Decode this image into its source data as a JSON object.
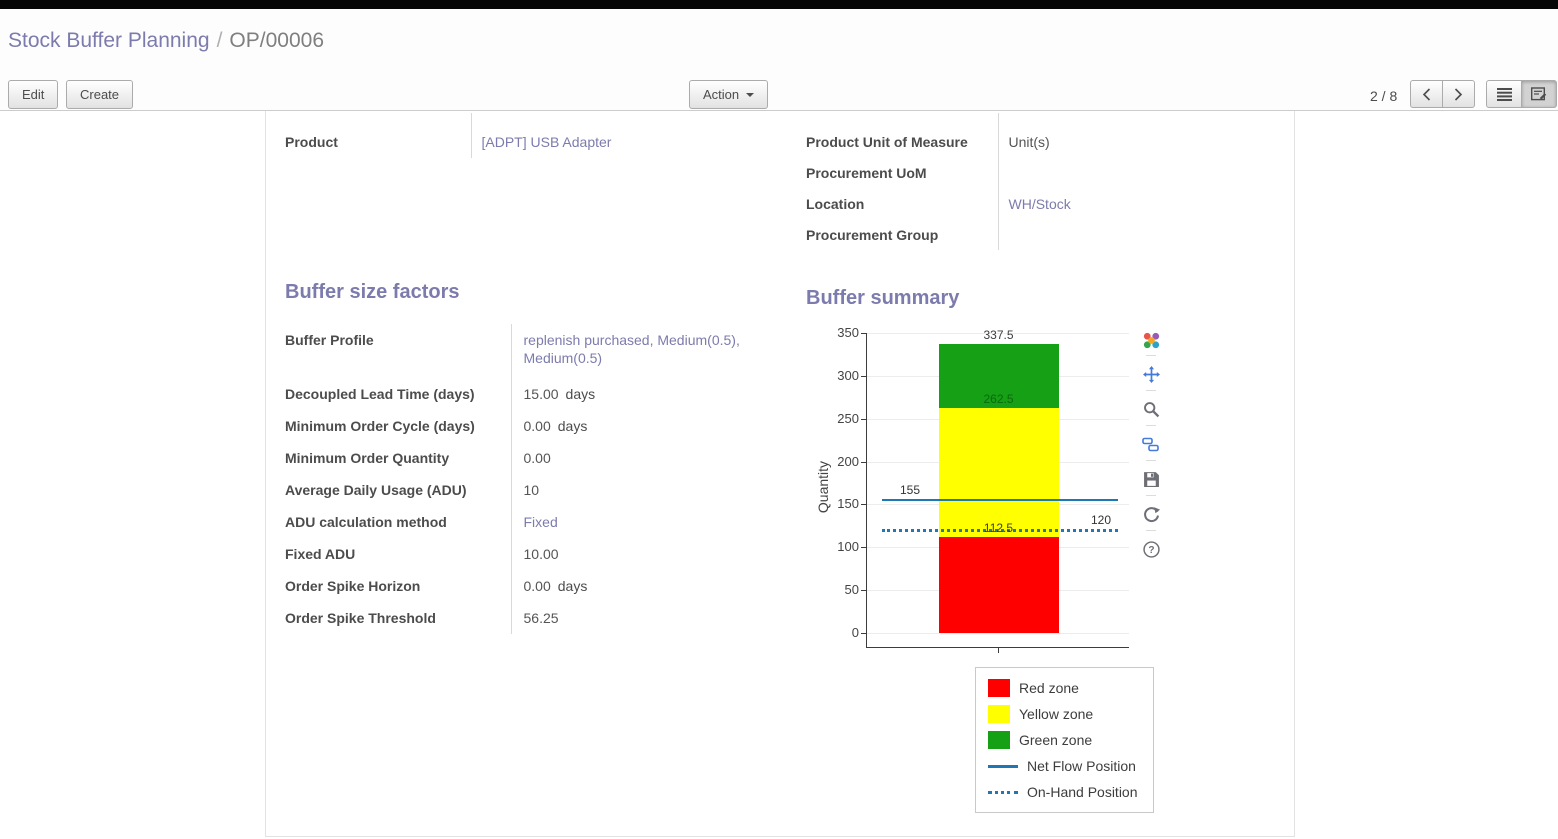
{
  "breadcrumb": {
    "parent": "Stock Buffer Planning",
    "separator": "/",
    "current": "OP/00006"
  },
  "toolbar": {
    "edit": "Edit",
    "create": "Create",
    "action": "Action",
    "pager": "2 / 8"
  },
  "form": {
    "sections": {
      "factors_title": "Buffer size factors",
      "summary_title": "Buffer summary"
    },
    "left_fields": [
      {
        "label": "Product",
        "value": "[ADPT] USB Adapter",
        "link": true
      }
    ],
    "right_fields": [
      {
        "label": "Product Unit of Measure",
        "value": "Unit(s)",
        "link": false
      },
      {
        "label": "Procurement UoM",
        "value": "",
        "link": false
      },
      {
        "label": "Location",
        "value": "WH/Stock",
        "link": true
      },
      {
        "label": "Procurement Group",
        "value": "",
        "link": false
      }
    ],
    "factor_fields": [
      {
        "label": "Buffer Profile",
        "value": "replenish purchased, Medium(0.5), Medium(0.5)",
        "link": true
      },
      {
        "label": "Decoupled Lead Time (days)",
        "value": "15.00",
        "suffix": "days"
      },
      {
        "label": "Minimum Order Cycle (days)",
        "value": "0.00",
        "suffix": "days"
      },
      {
        "label": "Minimum Order Quantity",
        "value": "0.00"
      },
      {
        "label": "Average Daily Usage (ADU)",
        "value": "10"
      },
      {
        "label": "ADU calculation method",
        "value": "Fixed",
        "link": true
      },
      {
        "label": "Fixed ADU",
        "value": "10.00"
      },
      {
        "label": "Order Spike Horizon",
        "value": "0.00",
        "suffix": "days"
      },
      {
        "label": "Order Spike Threshold",
        "value": "56.25"
      }
    ]
  },
  "chart_data": {
    "type": "bar",
    "title": "",
    "ylabel": "Quantity",
    "ylim": [
      0,
      350
    ],
    "yticks": [
      0,
      50,
      100,
      150,
      200,
      250,
      300,
      350
    ],
    "zones": [
      {
        "name": "Red zone",
        "from": 0,
        "to": 112.5,
        "color": "#ff0000"
      },
      {
        "name": "Yellow zone",
        "from": 112.5,
        "to": 262.5,
        "color": "#ffff00"
      },
      {
        "name": "Green zone",
        "from": 262.5,
        "to": 337.5,
        "color": "#15a015"
      }
    ],
    "lines": [
      {
        "name": "Net Flow Position",
        "value": 155,
        "style": "solid",
        "color": "#1f77b4",
        "label": "155",
        "label_align": "left"
      },
      {
        "name": "On-Hand Position",
        "value": 120,
        "style": "dotted",
        "color": "#1f77b4",
        "label": "120",
        "label_align": "right"
      }
    ],
    "annotations": [
      {
        "text": "337.5",
        "value": 337.5,
        "color": "#3d3d3d"
      },
      {
        "text": "262.5",
        "value": 262.5,
        "color": "#0b6b0b"
      },
      {
        "text": "112.5",
        "value": 112.5,
        "color": "#3d3d3d"
      }
    ],
    "legend": [
      {
        "label": "Red zone",
        "swatch": "square",
        "color": "#ff0000"
      },
      {
        "label": "Yellow zone",
        "swatch": "square",
        "color": "#ffff00"
      },
      {
        "label": "Green zone",
        "swatch": "square",
        "color": "#15a015"
      },
      {
        "label": "Net Flow Position",
        "swatch": "line",
        "color": "#1f77b4"
      },
      {
        "label": "On-Hand Position",
        "swatch": "dotted-line",
        "color": "#1f77b4"
      }
    ],
    "modebar_icons": [
      "plotly-logo",
      "pan",
      "zoom",
      "compare-hover",
      "save",
      "reset-axes",
      "help"
    ]
  }
}
